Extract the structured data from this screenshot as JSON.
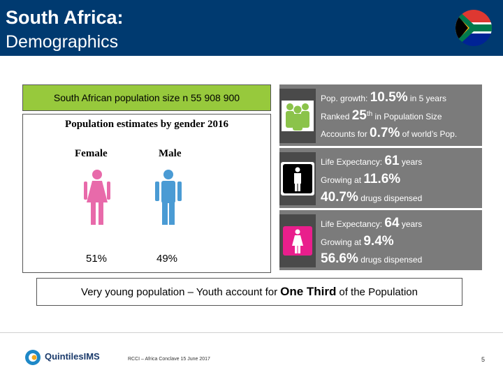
{
  "header": {
    "title_line1": "South Africa:",
    "title_line2": "Demographics"
  },
  "population_box": {
    "text": "South African population size n 55 908 900"
  },
  "gender_panel": {
    "title": "Population estimates by gender 2016",
    "female_label": "Female",
    "male_label": "Male",
    "female_pct": "51%",
    "male_pct": "49%",
    "female_color": "#e86aaa",
    "male_color": "#4a9bd4"
  },
  "stats": [
    {
      "icon": "group-people-icon",
      "icon_color": "#8bc34a",
      "lines": [
        {
          "pre": "Pop. growth: ",
          "big": "10.5%",
          "post": " in 5 years"
        },
        {
          "pre": "Ranked ",
          "big": "25",
          "sup": "th",
          "post": " in Population Size"
        },
        {
          "pre": "Accounts for ",
          "big": "0.7%",
          "post": " of world’s Pop."
        }
      ]
    },
    {
      "icon": "male-person-icon",
      "icon_color": "#000000",
      "lines": [
        {
          "pre": "Life Expectancy: ",
          "big": "61",
          "post": " years"
        },
        {
          "pre": "Growing at ",
          "big": "11.6%",
          "post": ""
        },
        {
          "pre": "",
          "big": "40.7%",
          "post": " drugs dispensed"
        }
      ]
    },
    {
      "icon": "female-person-icon",
      "icon_color": "#e91e8c",
      "lines": [
        {
          "pre": "Life Expectancy: ",
          "big": "64",
          "post": " years"
        },
        {
          "pre": "Growing at ",
          "big": "9.4%",
          "post": ""
        },
        {
          "pre": "",
          "big": "56.6%",
          "post": " drugs dispensed"
        }
      ]
    }
  ],
  "youth_banner": {
    "pre": "Very young population – Youth account for ",
    "strong": "One Third",
    "post": " of the Population"
  },
  "footer": {
    "logo_text": "QuintilesIMS",
    "footnote": "RCCI – Africa Conclave 15 June 2017",
    "page_number": "5"
  }
}
